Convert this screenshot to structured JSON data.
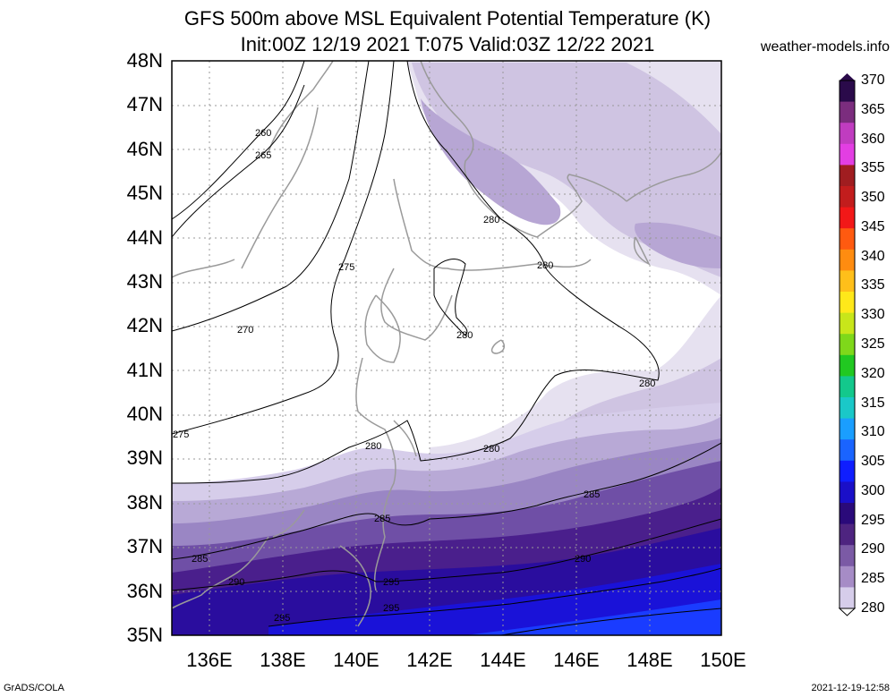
{
  "header": {
    "title": "GFS 500m above MSL Equivalent Potential Temperature (K)",
    "subtitle": "Init:00Z 12/19 2021 T:075 Valid:03Z 12/22 2021",
    "site": "weather-models.info"
  },
  "footer": {
    "left": "GrADS/COLA",
    "right": "2021-12-19-12:58"
  },
  "axes": {
    "lat_labels": [
      "48N",
      "47N",
      "46N",
      "45N",
      "44N",
      "43N",
      "42N",
      "41N",
      "40N",
      "39N",
      "38N",
      "37N",
      "36N",
      "35N"
    ],
    "lon_labels": [
      "136E",
      "138E",
      "140E",
      "142E",
      "144E",
      "146E",
      "148E",
      "150E"
    ]
  },
  "contour_labels": [
    "260",
    "265",
    "270",
    "275",
    "275",
    "280",
    "280",
    "280",
    "280",
    "280",
    "280",
    "285",
    "285",
    "285",
    "290",
    "290",
    "295",
    "295",
    "295"
  ],
  "colorbar": {
    "labels": [
      "370",
      "365",
      "360",
      "355",
      "350",
      "345",
      "340",
      "335",
      "330",
      "325",
      "320",
      "315",
      "310",
      "305",
      "300",
      "295",
      "290",
      "285",
      "280"
    ],
    "colors": [
      "#2a0a4a",
      "#7b2d7e",
      "#c03cc0",
      "#e33ee3",
      "#a01d20",
      "#c21d1d",
      "#f21818",
      "#ff5a10",
      "#ff8c10",
      "#ffbf1a",
      "#ffe81a",
      "#c8e61a",
      "#7fd81a",
      "#21c821",
      "#13c88c",
      "#1ac8c8",
      "#1a9eff",
      "#1a64ff",
      "#0f1eff",
      "#1a0fc8",
      "#2a0a7a",
      "#4e2480",
      "#7b5aa5",
      "#a68cc6",
      "#d6cdea"
    ]
  }
}
